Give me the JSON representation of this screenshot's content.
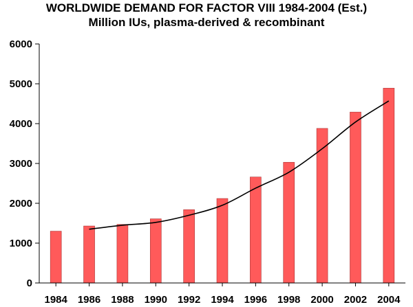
{
  "chart_data": {
    "type": "bar",
    "title": "WORLDWIDE DEMAND FOR FACTOR VIII 1984-2004 (Est.)",
    "subtitle": "Million IUs, plasma-derived & recombinant",
    "xlabel": "",
    "ylabel": "",
    "categories": [
      "1984",
      "1986",
      "1988",
      "1990",
      "1992",
      "1994",
      "1996",
      "1998",
      "2000",
      "2002",
      "2004"
    ],
    "values": [
      1300,
      1430,
      1470,
      1610,
      1840,
      2120,
      2660,
      3030,
      3880,
      4290,
      4890
    ],
    "yticks": [
      0,
      1000,
      2000,
      3000,
      4000,
      5000,
      6000
    ],
    "ylim": [
      0,
      6000
    ],
    "grid": false,
    "bar_color": "#ff5a5a",
    "trend": {
      "type": "line",
      "color": "#000000",
      "categories": [
        "1986",
        "1988",
        "1990",
        "1992",
        "1994",
        "1996",
        "1998",
        "2000",
        "2002",
        "2004"
      ],
      "values": [
        1350,
        1450,
        1520,
        1700,
        1950,
        2380,
        2780,
        3370,
        4040,
        4570
      ]
    }
  }
}
